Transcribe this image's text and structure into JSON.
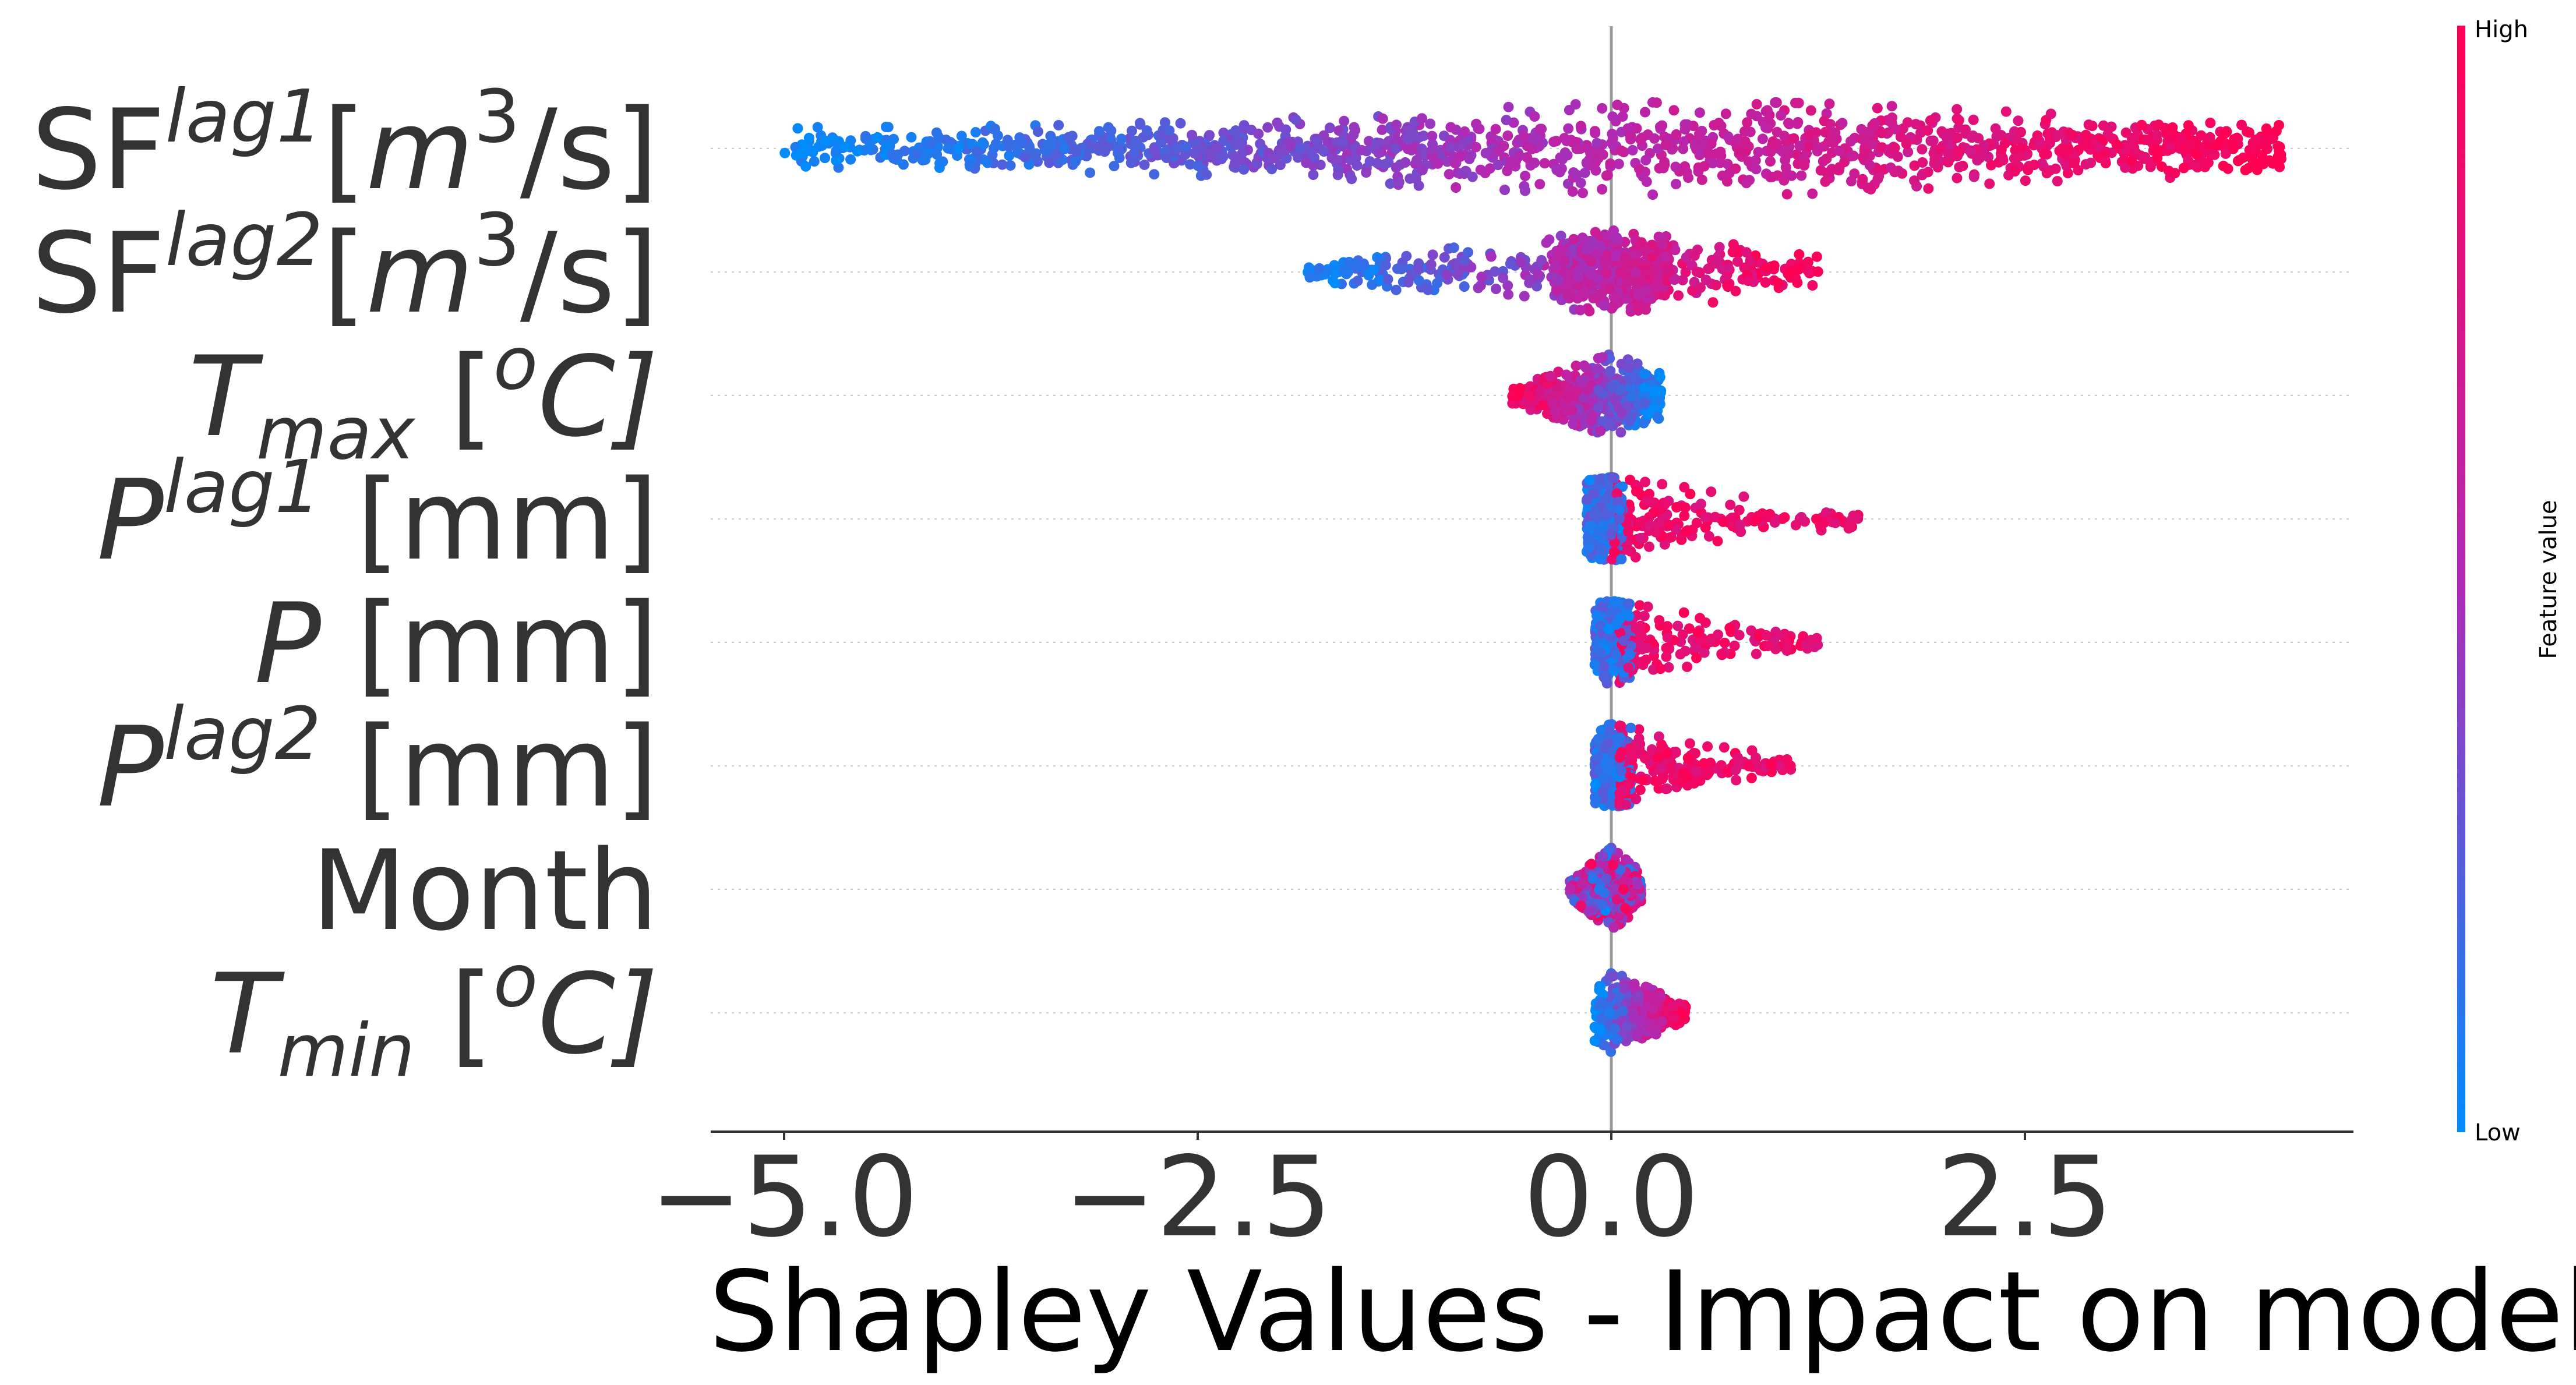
{
  "chart_data": {
    "type": "scatter",
    "subtype": "shap-beeswarm-summary",
    "xlabel": "Shapley Values - Impact on model",
    "xlim": [
      -5.9,
      4.5
    ],
    "xticks": [
      -5.0,
      -2.5,
      0.0,
      2.5
    ],
    "xtick_labels": [
      "−5.0",
      "−2.5",
      "0.0",
      "2.5"
    ],
    "zero_line": 0.0,
    "colorbar": {
      "label": "Feature value",
      "high_label": "High",
      "low_label": "Low",
      "low_color": "#008bfb",
      "mid_color": "#b02ab5",
      "high_color": "#ff0052"
    },
    "features": [
      {
        "name": "SF lag1 [m3/s]",
        "label_base": "SF",
        "label_sup": "lag1",
        "label_sub": "",
        "label_unit_pre": "[",
        "label_unit_var": "m",
        "label_unit_sup": "3",
        "label_unit_post": "/s]",
        "label_italic_base": false,
        "label_plain": "",
        "shap_min": -5.0,
        "shap_max": 4.05,
        "spread": "wide",
        "color_trend": "increasing"
      },
      {
        "name": "SF lag2 [m3/s]",
        "label_base": "SF",
        "label_sup": "lag2",
        "label_sub": "",
        "label_unit_pre": "[",
        "label_unit_var": "m",
        "label_unit_sup": "3",
        "label_unit_post": "/s]",
        "label_italic_base": false,
        "label_plain": "",
        "shap_min": -1.85,
        "shap_max": 1.25,
        "spread": "medium",
        "color_trend": "increasing"
      },
      {
        "name": "T max [oC]",
        "label_base": "T",
        "label_sup": "",
        "label_sub": "max",
        "label_unit_pre": " [",
        "label_unit_var": "",
        "label_unit_sup": "o",
        "label_unit_post": "C]",
        "label_italic_base": true,
        "label_plain": "",
        "shap_min": -0.6,
        "shap_max": 0.3,
        "spread": "narrow",
        "color_trend": "decreasing"
      },
      {
        "name": "P lag1 [mm]",
        "label_base": "P",
        "label_sup": "lag1",
        "label_sub": "",
        "label_unit_pre": " [mm]",
        "label_unit_var": "",
        "label_unit_sup": "",
        "label_unit_post": "",
        "label_italic_base": true,
        "label_plain": "",
        "shap_min": -0.15,
        "shap_max": 1.5,
        "spread": "right-tail",
        "color_trend": "increasing"
      },
      {
        "name": "P [mm]",
        "label_base": "P",
        "label_sup": "",
        "label_sub": "",
        "label_unit_pre": " [mm]",
        "label_unit_var": "",
        "label_unit_sup": "",
        "label_unit_post": "",
        "label_italic_base": true,
        "label_plain": "",
        "shap_min": -0.1,
        "shap_max": 1.25,
        "spread": "right-tail",
        "color_trend": "increasing"
      },
      {
        "name": "P lag2 [mm]",
        "label_base": "P",
        "label_sup": "lag2",
        "label_sub": "",
        "label_unit_pre": " [mm]",
        "label_unit_var": "",
        "label_unit_sup": "",
        "label_unit_post": "",
        "label_italic_base": true,
        "label_plain": "",
        "shap_min": -0.1,
        "shap_max": 1.1,
        "spread": "right-tail",
        "color_trend": "increasing"
      },
      {
        "name": "Month",
        "label_base": "",
        "label_sup": "",
        "label_sub": "",
        "label_unit_pre": "",
        "label_unit_var": "",
        "label_unit_sup": "",
        "label_unit_post": "",
        "label_italic_base": false,
        "label_plain": "Month",
        "shap_min": -0.25,
        "shap_max": 0.18,
        "spread": "narrow",
        "color_trend": "mixed"
      },
      {
        "name": "T min [oC]",
        "label_base": "T",
        "label_sup": "",
        "label_sub": "min",
        "label_unit_pre": " [",
        "label_unit_var": "",
        "label_unit_sup": "o",
        "label_unit_post": "C]",
        "label_italic_base": true,
        "label_plain": "",
        "shap_min": -0.1,
        "shap_max": 0.45,
        "spread": "narrow",
        "color_trend": "increasing"
      }
    ],
    "grid": false,
    "legend": "colorbar-right"
  }
}
